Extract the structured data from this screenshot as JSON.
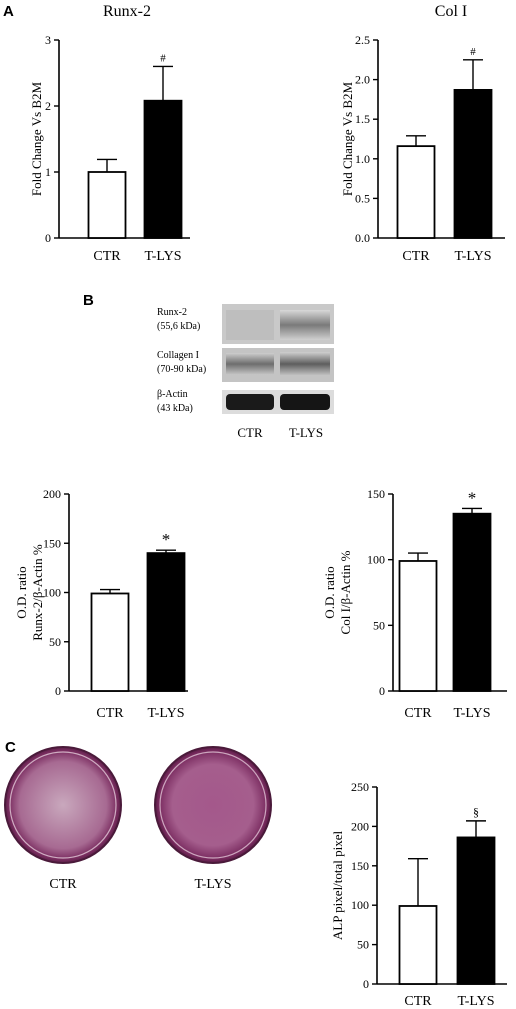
{
  "panels": {
    "a": "A",
    "b": "B",
    "c": "C"
  },
  "blot": {
    "rows": [
      {
        "name": "Runx-2",
        "detail": "(55,6 kDa)"
      },
      {
        "name": "Collagen I",
        "detail": "(70-90 kDa)"
      },
      {
        "name": "β-Actin",
        "detail": "(43 kDa)"
      }
    ],
    "lanes": [
      "CTR",
      "T-LYS"
    ]
  },
  "dishes": {
    "labels": [
      "CTR",
      "T-LYS"
    ],
    "stain_color": "#9c3a78"
  },
  "colors": {
    "ctr_fill": "#ffffff",
    "tlys_fill": "#000000",
    "axis": "#000000"
  },
  "chart_data": [
    {
      "type": "bar",
      "title": "Runx-2",
      "ylabel": "Fold Change Vs B2M",
      "ylabel_lines": [
        "Fold Change Vs B2M"
      ],
      "categories": [
        "CTR",
        "T-LYS"
      ],
      "values": [
        1.0,
        2.08
      ],
      "errors": [
        0.19,
        0.52
      ],
      "annotations": [
        "",
        "#"
      ],
      "ylim": [
        0,
        3
      ],
      "yticks": [
        0,
        1,
        2,
        3
      ],
      "ytick_labels": [
        "0",
        "1",
        "2",
        "3"
      ]
    },
    {
      "type": "bar",
      "title": "Col I",
      "ylabel": "Fold Change Vs B2M",
      "ylabel_lines": [
        "Fold Change Vs B2M"
      ],
      "categories": [
        "CTR",
        "T-LYS"
      ],
      "values": [
        1.16,
        1.87
      ],
      "errors": [
        0.13,
        0.38
      ],
      "annotations": [
        "",
        "#"
      ],
      "ylim": [
        0,
        2.5
      ],
      "yticks": [
        0,
        0.5,
        1,
        1.5,
        2,
        2.5
      ],
      "ytick_labels": [
        "0.0",
        "0.5",
        "1.0",
        "1.5",
        "2.0",
        "2.5"
      ]
    },
    {
      "type": "bar",
      "title": "",
      "ylabel": "O.D. ratio Runx-2/β-Actin %",
      "ylabel_lines": [
        "O.D. ratio",
        "Runx-2/β-Actin %"
      ],
      "categories": [
        "CTR",
        "T-LYS"
      ],
      "values": [
        99,
        140
      ],
      "errors": [
        4,
        3
      ],
      "annotations": [
        "",
        "*"
      ],
      "ylim": [
        0,
        200
      ],
      "yticks": [
        0,
        50,
        100,
        150,
        200
      ],
      "ytick_labels": [
        "0",
        "50",
        "100",
        "150",
        "200"
      ]
    },
    {
      "type": "bar",
      "title": "",
      "ylabel": "O.D. ratio Col I/β-Actin %",
      "ylabel_lines": [
        "O.D. ratio",
        "Col I/β-Actin %"
      ],
      "categories": [
        "CTR",
        "T-LYS"
      ],
      "values": [
        99,
        135
      ],
      "errors": [
        6,
        4
      ],
      "annotations": [
        "",
        "*"
      ],
      "ylim": [
        0,
        150
      ],
      "yticks": [
        0,
        50,
        100,
        150
      ],
      "ytick_labels": [
        "0",
        "50",
        "100",
        "150"
      ]
    },
    {
      "type": "bar",
      "title": "",
      "ylabel": "ALP pixel/total pixel",
      "ylabel_lines": [
        "ALP pixel/total pixel"
      ],
      "categories": [
        "CTR",
        "T-LYS"
      ],
      "values": [
        99,
        186
      ],
      "errors": [
        60,
        21
      ],
      "annotations": [
        "",
        "§"
      ],
      "ylim": [
        0,
        250
      ],
      "yticks": [
        0,
        50,
        100,
        150,
        200,
        250
      ],
      "ytick_labels": [
        "0",
        "50",
        "100",
        "150",
        "200",
        "250"
      ]
    }
  ]
}
